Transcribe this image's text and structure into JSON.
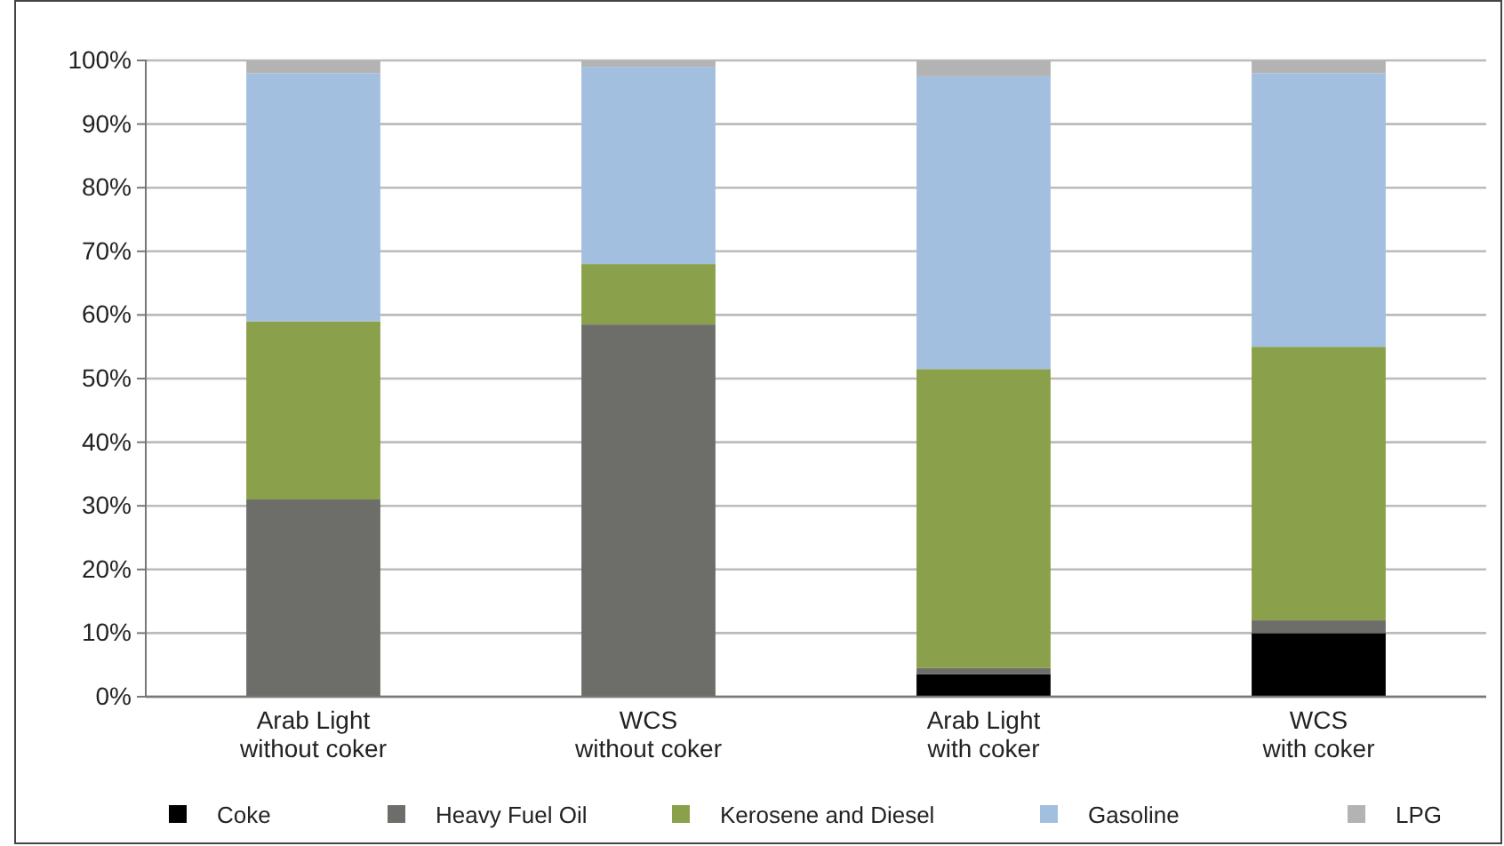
{
  "chart_data": {
    "type": "bar",
    "stacked": true,
    "categories": [
      "Arab Light\nwithout coker",
      "WCS\nwithout coker",
      "Arab Light\nwith coker",
      "WCS\nwith coker"
    ],
    "series": [
      {
        "name": "Coke",
        "color": "#000000",
        "values": [
          0,
          0,
          3.5,
          10
        ]
      },
      {
        "name": "Heavy Fuel Oil",
        "color": "#6d6e6a",
        "values": [
          31,
          58.5,
          1,
          2
        ]
      },
      {
        "name": "Kerosene and Diesel",
        "color": "#8aa04a",
        "values": [
          28,
          9.5,
          47,
          43
        ]
      },
      {
        "name": "Gasoline",
        "color": "#a3bfe0",
        "values": [
          39,
          31,
          46,
          43
        ]
      },
      {
        "name": "LPG",
        "color": "#b3b3b3",
        "values": [
          2,
          1,
          2.5,
          2
        ]
      }
    ],
    "ylim": [
      0,
      100
    ],
    "yticks": [
      {
        "value": 0,
        "label": "0%"
      },
      {
        "value": 10,
        "label": "10%"
      },
      {
        "value": 20,
        "label": "20%"
      },
      {
        "value": 30,
        "label": "30%"
      },
      {
        "value": 40,
        "label": "40%"
      },
      {
        "value": 50,
        "label": "50%"
      },
      {
        "value": 60,
        "label": "60%"
      },
      {
        "value": 70,
        "label": "70%"
      },
      {
        "value": 80,
        "label": "80%"
      },
      {
        "value": 90,
        "label": "90%"
      },
      {
        "value": 100,
        "label": "100%"
      }
    ],
    "grid": "y",
    "legend": "bottom"
  }
}
